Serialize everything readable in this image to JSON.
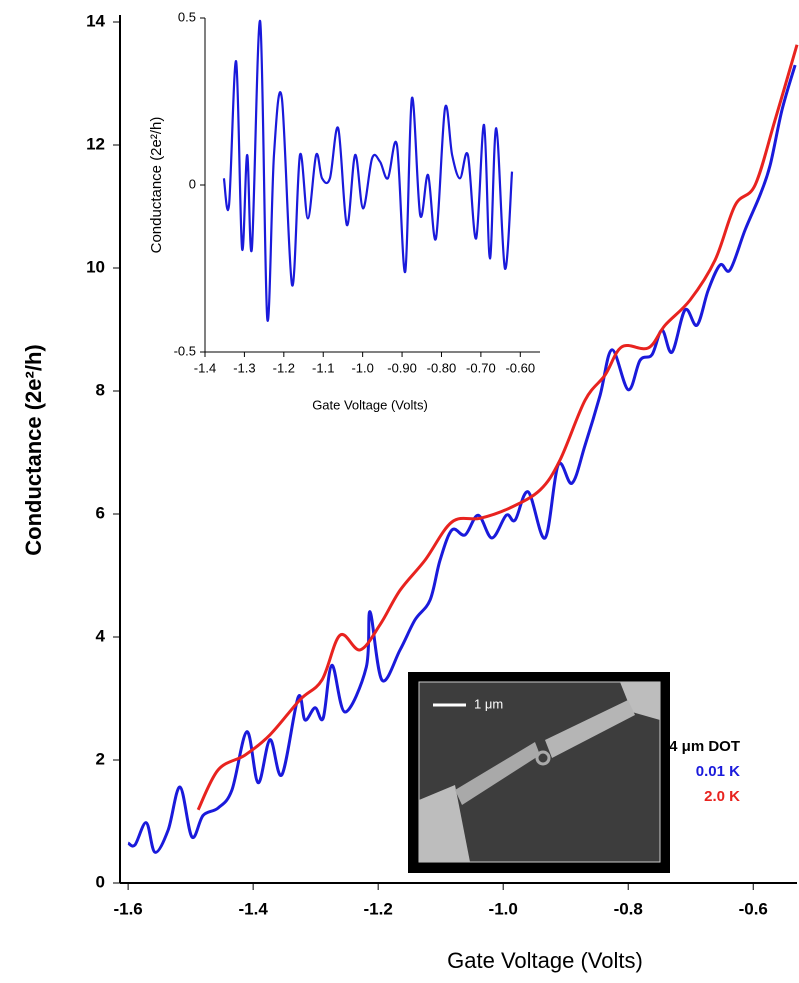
{
  "chart_data": [
    {
      "type": "line",
      "x_label": "Gate Voltage (Volts)",
      "y_label": "Conductance (2e²/h)",
      "xlim": [
        -1.613,
        -0.53
      ],
      "ylim": [
        0,
        14
      ],
      "xticks": [
        -1.6,
        -1.4,
        -1.2,
        {
          "value": -1.0,
          "label": "-1.0"
        },
        -0.8,
        -0.6
      ],
      "yticks": [
        0,
        2,
        4,
        6,
        8,
        10,
        12,
        14
      ],
      "legend_title": "0.4 μm DOT",
      "scale_bar_label": "1 μm",
      "series": [
        {
          "name": "0.01 K",
          "color": "#1a1adb",
          "x": [
            -1.6,
            -1.589,
            -1.571,
            -1.557,
            -1.536,
            -1.517,
            -1.498,
            -1.48,
            -1.456,
            -1.434,
            -1.41,
            -1.392,
            -1.373,
            -1.354,
            -1.328,
            -1.317,
            -1.301,
            -1.288,
            -1.274,
            -1.253,
            -1.219,
            -1.213,
            -1.194,
            -1.165,
            -1.141,
            -1.117,
            -1.101,
            -1.082,
            -1.061,
            -1.04,
            -1.018,
            -0.995,
            -0.981,
            -0.96,
            -0.933,
            -0.912,
            -0.89,
            -0.869,
            -0.845,
            -0.826,
            -0.8,
            -0.781,
            -0.762,
            -0.746,
            -0.73,
            -0.709,
            -0.69,
            -0.672,
            -0.653,
            -0.637,
            -0.613,
            -0.589,
            -0.573,
            -0.554,
            -0.533
          ],
          "values": [
            0.65,
            0.62,
            0.98,
            0.5,
            0.86,
            1.56,
            0.75,
            1.1,
            1.22,
            1.51,
            2.46,
            1.63,
            2.33,
            1.76,
            3.02,
            2.65,
            2.85,
            2.68,
            3.54,
            2.78,
            3.51,
            4.41,
            3.3,
            3.79,
            4.28,
            4.6,
            5.25,
            5.74,
            5.66,
            5.98,
            5.61,
            5.98,
            5.9,
            6.36,
            5.61,
            6.8,
            6.5,
            7.12,
            7.93,
            8.67,
            8.02,
            8.5,
            8.59,
            8.99,
            8.63,
            9.32,
            9.07,
            9.64,
            10.05,
            9.97,
            10.62,
            11.19,
            11.67,
            12.57,
            13.3
          ]
        },
        {
          "name": "2.0 K",
          "color": "#e8231f",
          "x": [
            -1.488,
            -1.456,
            -1.413,
            -1.373,
            -1.325,
            -1.29,
            -1.261,
            -1.229,
            -1.197,
            -1.165,
            -1.125,
            -1.082,
            -1.037,
            -0.989,
            -0.941,
            -0.909,
            -0.869,
            -0.837,
            -0.81,
            -0.768,
            -0.741,
            -0.701,
            -0.661,
            -0.629,
            -0.597,
            -0.565,
            -0.53
          ],
          "values": [
            1.19,
            1.84,
            2.08,
            2.41,
            2.98,
            3.3,
            4.03,
            3.79,
            4.2,
            4.76,
            5.25,
            5.87,
            5.93,
            6.1,
            6.39,
            6.88,
            7.85,
            8.26,
            8.72,
            8.7,
            9.07,
            9.48,
            10.13,
            11.02,
            11.35,
            12.41,
            13.63
          ]
        }
      ]
    },
    {
      "type": "line",
      "x_label": "Gate Voltage (Volts)",
      "y_label": "Conductance (2e²/h)",
      "xlim": [
        -1.4,
        -0.55
      ],
      "ylim": [
        -0.5,
        0.5
      ],
      "xticks": [
        -1.4,
        -1.3,
        -1.2,
        -1.1,
        {
          "value": -1.0,
          "label": "-1.0"
        },
        {
          "value": -0.9,
          "label": "-0.90"
        },
        {
          "value": -0.8,
          "label": "-0.80"
        },
        {
          "value": -0.7,
          "label": "-0.70"
        },
        {
          "value": -0.6,
          "label": "-0.60"
        }
      ],
      "yticks": [
        -0.5,
        0,
        0.5
      ],
      "series": [
        {
          "color": "#1a1adb",
          "x": [
            -1.352,
            -1.339,
            -1.321,
            -1.306,
            -1.293,
            -1.281,
            -1.26,
            -1.242,
            -1.225,
            -1.205,
            -1.179,
            -1.159,
            -1.139,
            -1.118,
            -1.103,
            -1.083,
            -1.062,
            -1.04,
            -1.019,
            -0.999,
            -0.976,
            -0.956,
            -0.936,
            -0.913,
            -0.892,
            -0.875,
            -0.854,
            -0.834,
            -0.814,
            -0.791,
            -0.773,
            -0.753,
            -0.733,
            -0.712,
            -0.692,
            -0.677,
            -0.661,
            -0.639,
            -0.621
          ],
          "values": [
            0.02,
            -0.06,
            0.37,
            -0.19,
            0.09,
            -0.19,
            0.49,
            -0.4,
            0.09,
            0.26,
            -0.3,
            0.09,
            -0.1,
            0.09,
            0.02,
            0.02,
            0.17,
            -0.12,
            0.09,
            -0.07,
            0.08,
            0.07,
            0.02,
            0.12,
            -0.26,
            0.26,
            -0.09,
            0.03,
            -0.16,
            0.23,
            0.09,
            0.02,
            0.09,
            -0.16,
            0.18,
            -0.22,
            0.17,
            -0.25,
            0.04
          ]
        }
      ]
    }
  ]
}
